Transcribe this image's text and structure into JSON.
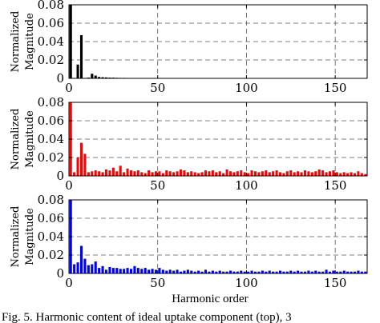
{
  "chart_data": [
    {
      "type": "bar",
      "color": "#000000",
      "ylabel": "Normalized\nMagnitude",
      "xlabel": "",
      "xlim": [
        0,
        168
      ],
      "ylim": [
        0,
        0.08
      ],
      "xticks": [
        "0",
        "50",
        "100",
        "150"
      ],
      "yticks": [
        "0",
        "0.02",
        "0.04",
        "0.06",
        "0.08"
      ],
      "grid": true,
      "x": [
        1,
        3,
        5,
        7,
        9,
        11,
        13,
        15,
        17,
        19,
        21,
        23,
        25,
        27,
        29,
        31,
        33,
        35,
        37,
        39
      ],
      "values": [
        0.08,
        0.0,
        0.015,
        0.047,
        0.0,
        0.0008,
        0.005,
        0.003,
        0.0015,
        0.0012,
        0.001,
        0.0008,
        0.0008,
        0.0006,
        0.0005,
        0.0005,
        0.0004,
        0.0004,
        0.0003,
        0.0003
      ]
    },
    {
      "type": "bar",
      "color": "#ff0000",
      "ylabel": "Normalized\nMagnitude",
      "xlabel": "",
      "xlim": [
        0,
        168
      ],
      "ylim": [
        0,
        0.08
      ],
      "xticks": [
        "0",
        "50",
        "100",
        "150"
      ],
      "yticks": [
        "0",
        "0.02",
        "0.04",
        "0.06",
        "0.08"
      ],
      "grid": true,
      "x": [
        1,
        3,
        5,
        7,
        9,
        11,
        13,
        15,
        17,
        19,
        21,
        23,
        25,
        27,
        29,
        31,
        33,
        35,
        37,
        39,
        41,
        43,
        45,
        47,
        49,
        51,
        53,
        55,
        57,
        59,
        61,
        63,
        65,
        67,
        69,
        71,
        73,
        75,
        77,
        79,
        81,
        83,
        85,
        87,
        89,
        91,
        93,
        95,
        97,
        99,
        101,
        103,
        105,
        107,
        109,
        111,
        113,
        115,
        117,
        119,
        121,
        123,
        125,
        127,
        129,
        131,
        133,
        135,
        137,
        139,
        141,
        143,
        145,
        147,
        149,
        151,
        153,
        155,
        157,
        159,
        161,
        163,
        165,
        167
      ],
      "values": [
        0.08,
        0.004,
        0.02,
        0.036,
        0.024,
        0.004,
        0.005,
        0.006,
        0.005,
        0.004,
        0.007,
        0.006,
        0.009,
        0.005,
        0.011,
        0.004,
        0.008,
        0.006,
        0.005,
        0.006,
        0.004,
        0.003,
        0.006,
        0.004,
        0.005,
        0.005,
        0.003,
        0.006,
        0.005,
        0.004,
        0.005,
        0.007,
        0.006,
        0.004,
        0.005,
        0.004,
        0.003,
        0.004,
        0.006,
        0.005,
        0.006,
        0.004,
        0.005,
        0.003,
        0.007,
        0.005,
        0.004,
        0.005,
        0.006,
        0.004,
        0.003,
        0.006,
        0.005,
        0.004,
        0.005,
        0.006,
        0.004,
        0.005,
        0.006,
        0.004,
        0.003,
        0.005,
        0.006,
        0.004,
        0.005,
        0.004,
        0.006,
        0.005,
        0.004,
        0.005,
        0.007,
        0.006,
        0.004,
        0.005,
        0.006,
        0.004,
        0.003,
        0.004,
        0.003,
        0.004,
        0.003,
        0.005,
        0.003,
        0.002
      ]
    },
    {
      "type": "bar",
      "color": "#0000ff",
      "ylabel": "Normalized\nMagnitude",
      "xlabel": "Harmonic order",
      "xlim": [
        0,
        168
      ],
      "ylim": [
        0,
        0.08
      ],
      "xticks": [
        "0",
        "50",
        "100",
        "150"
      ],
      "yticks": [
        "0",
        "0.02",
        "0.04",
        "0.06",
        "0.08"
      ],
      "grid": true,
      "x": [
        1,
        3,
        5,
        7,
        9,
        11,
        13,
        15,
        17,
        19,
        21,
        23,
        25,
        27,
        29,
        31,
        33,
        35,
        37,
        39,
        41,
        43,
        45,
        47,
        49,
        51,
        53,
        55,
        57,
        59,
        61,
        63,
        65,
        67,
        69,
        71,
        73,
        75,
        77,
        79,
        81,
        83,
        85,
        87,
        89,
        91,
        93,
        95,
        97,
        99,
        101,
        103,
        105,
        107,
        109,
        111,
        113,
        115,
        117,
        119,
        121,
        123,
        125,
        127,
        129,
        131,
        133,
        135,
        137,
        139,
        141,
        143,
        145,
        147,
        149,
        151,
        153,
        155,
        157,
        159,
        161,
        163,
        165,
        167
      ],
      "values": [
        0.08,
        0.01,
        0.012,
        0.03,
        0.016,
        0.009,
        0.01,
        0.013,
        0.006,
        0.008,
        0.004,
        0.007,
        0.006,
        0.006,
        0.005,
        0.005,
        0.006,
        0.005,
        0.008,
        0.006,
        0.005,
        0.006,
        0.004,
        0.005,
        0.004,
        0.006,
        0.004,
        0.003,
        0.004,
        0.003,
        0.004,
        0.002,
        0.003,
        0.004,
        0.003,
        0.002,
        0.003,
        0.002,
        0.004,
        0.002,
        0.003,
        0.002,
        0.003,
        0.002,
        0.002,
        0.003,
        0.002,
        0.002,
        0.003,
        0.002,
        0.002,
        0.003,
        0.002,
        0.002,
        0.003,
        0.002,
        0.003,
        0.002,
        0.002,
        0.003,
        0.002,
        0.002,
        0.003,
        0.002,
        0.003,
        0.002,
        0.002,
        0.003,
        0.002,
        0.003,
        0.002,
        0.002,
        0.004,
        0.002,
        0.003,
        0.002,
        0.002,
        0.003,
        0.002,
        0.002,
        0.002,
        0.003,
        0.002,
        0.002
      ]
    }
  ],
  "caption": "Fig. 5. Harmonic content of ideal uptake component (top), 3"
}
